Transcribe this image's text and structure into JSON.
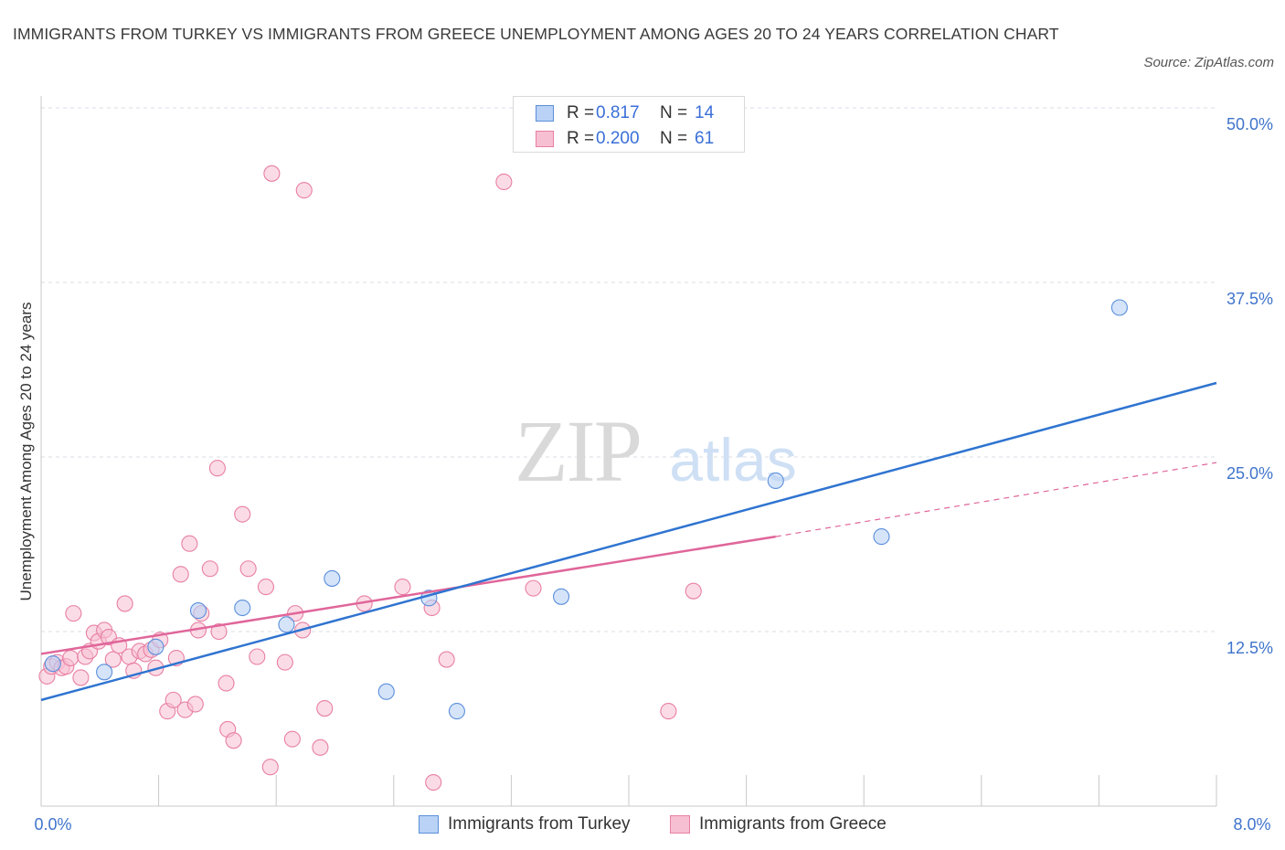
{
  "title": "IMMIGRANTS FROM TURKEY VS IMMIGRANTS FROM GREECE UNEMPLOYMENT AMONG AGES 20 TO 24 YEARS CORRELATION CHART",
  "source": "Source: ZipAtlas.com",
  "watermark": {
    "zip": "ZIP",
    "atlas": "atlas"
  },
  "colors": {
    "turkey_fill": "#b9d2f5",
    "turkey_stroke": "#5b8fdb",
    "turkey_line": "#2f74d0",
    "greece_fill": "#f7bfd2",
    "greece_stroke": "#e87fa3",
    "greece_line": "#e0669a",
    "grid": "#d8dde6",
    "tick_label": "#3f74cc"
  },
  "legend": {
    "rows": [
      {
        "r_label": "R =",
        "r_value": "0.817",
        "n_label": "N =",
        "n_value": "14"
      },
      {
        "r_label": "R =",
        "r_value": "0.200",
        "n_label": "N =",
        "n_value": "61"
      }
    ]
  },
  "bottom_legend": {
    "turkey": "Immigrants from Turkey",
    "greece": "Immigrants from Greece"
  },
  "chart_data": {
    "type": "scatter",
    "title": "IMMIGRANTS FROM TURKEY VS IMMIGRANTS FROM GREECE UNEMPLOYMENT AMONG AGES 20 TO 24 YEARS CORRELATION CHART",
    "xlabel": "",
    "ylabel": "Unemployment Among Ages 20 to 24 years",
    "xlim": [
      0,
      8
    ],
    "ylim": [
      0,
      50
    ],
    "x_tick_labels": [
      "0.0%",
      "8.0%"
    ],
    "y_ticks": [
      12.5,
      25.0,
      37.5,
      50.0
    ],
    "y_tick_labels": [
      "12.5%",
      "25.0%",
      "37.5%",
      "50.0%"
    ],
    "grid": true,
    "series": [
      {
        "name": "Immigrants from Turkey",
        "r": 0.817,
        "n": 14,
        "points": [
          [
            0.08,
            10.2
          ],
          [
            0.43,
            9.6
          ],
          [
            0.78,
            11.4
          ],
          [
            1.07,
            14.0
          ],
          [
            1.37,
            14.2
          ],
          [
            1.67,
            13.0
          ],
          [
            1.98,
            16.3
          ],
          [
            2.35,
            8.2
          ],
          [
            2.64,
            14.9
          ],
          [
            2.83,
            6.8
          ],
          [
            3.54,
            15.0
          ],
          [
            5.0,
            23.3
          ],
          [
            5.72,
            19.3
          ],
          [
            7.34,
            35.7
          ]
        ],
        "trend": {
          "x": [
            0,
            8
          ],
          "y": [
            7.6,
            30.3
          ]
        }
      },
      {
        "name": "Immigrants from Greece",
        "r": 0.2,
        "n": 61,
        "points": [
          [
            0.04,
            9.3
          ],
          [
            0.07,
            10.0
          ],
          [
            0.11,
            10.3
          ],
          [
            0.14,
            9.9
          ],
          [
            0.17,
            10.0
          ],
          [
            0.2,
            10.6
          ],
          [
            0.22,
            13.8
          ],
          [
            0.27,
            9.2
          ],
          [
            0.3,
            10.7
          ],
          [
            0.33,
            11.1
          ],
          [
            0.36,
            12.4
          ],
          [
            0.39,
            11.8
          ],
          [
            0.43,
            12.6
          ],
          [
            0.46,
            12.1
          ],
          [
            0.49,
            10.5
          ],
          [
            0.53,
            11.5
          ],
          [
            0.57,
            14.5
          ],
          [
            0.6,
            10.7
          ],
          [
            0.63,
            9.7
          ],
          [
            0.67,
            11.1
          ],
          [
            0.71,
            10.9
          ],
          [
            0.75,
            11.2
          ],
          [
            0.78,
            9.9
          ],
          [
            0.81,
            11.9
          ],
          [
            0.86,
            6.8
          ],
          [
            0.9,
            7.6
          ],
          [
            0.92,
            10.6
          ],
          [
            0.95,
            16.6
          ],
          [
            0.98,
            6.9
          ],
          [
            1.01,
            18.8
          ],
          [
            1.05,
            7.3
          ],
          [
            1.07,
            12.6
          ],
          [
            1.09,
            13.8
          ],
          [
            1.15,
            17.0
          ],
          [
            1.2,
            24.2
          ],
          [
            1.21,
            12.5
          ],
          [
            1.26,
            8.8
          ],
          [
            1.27,
            5.5
          ],
          [
            1.31,
            4.7
          ],
          [
            1.37,
            20.9
          ],
          [
            1.41,
            17.0
          ],
          [
            1.47,
            10.7
          ],
          [
            1.53,
            15.7
          ],
          [
            1.56,
            2.8
          ],
          [
            1.57,
            45.3
          ],
          [
            1.66,
            10.3
          ],
          [
            1.71,
            4.8
          ],
          [
            1.73,
            13.8
          ],
          [
            1.78,
            12.6
          ],
          [
            1.79,
            44.1
          ],
          [
            1.9,
            4.2
          ],
          [
            1.93,
            7.0
          ],
          [
            2.2,
            14.5
          ],
          [
            2.46,
            15.7
          ],
          [
            2.66,
            14.2
          ],
          [
            2.67,
            1.7
          ],
          [
            2.76,
            10.5
          ],
          [
            3.15,
            44.7
          ],
          [
            3.35,
            15.6
          ],
          [
            4.27,
            6.8
          ],
          [
            4.44,
            15.4
          ]
        ],
        "trend": {
          "x": [
            0,
            5.0
          ],
          "y": [
            10.9,
            19.3
          ],
          "dashed_to": {
            "x": 8,
            "y": 24.6
          }
        }
      }
    ]
  }
}
